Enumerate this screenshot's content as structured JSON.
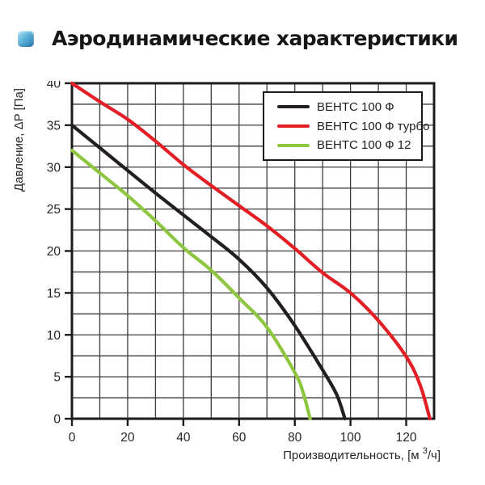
{
  "header": {
    "title": "Аэродинамические характеристики",
    "bullet_icon": "blue-glossy-square",
    "accent_color": "#2178ad"
  },
  "chart_data": {
    "type": "line",
    "title": "Аэродинамические характеристики",
    "xlabel": "Производительность, [м³/ч]",
    "ylabel": "Давление, ΔP [Па]",
    "xlim": [
      0,
      130
    ],
    "ylim": [
      0,
      40
    ],
    "x_major_ticks": [
      0,
      20,
      40,
      60,
      80,
      100,
      120
    ],
    "y_major_ticks": [
      0,
      5,
      10,
      15,
      20,
      25,
      30,
      35,
      40
    ],
    "x_grid_step": 10,
    "y_grid_step": 2.5,
    "grid": true,
    "grid_color": "#3d3d3d",
    "frame_color": "#1c1c1c",
    "legend_position": "top-right",
    "series": [
      {
        "name": "ВЕНТС 100 Ф",
        "color": "#231f20",
        "points": [
          [
            0,
            35
          ],
          [
            10,
            32.3
          ],
          [
            20,
            29.6
          ],
          [
            30,
            26.9
          ],
          [
            40,
            24.3
          ],
          [
            50,
            21.7
          ],
          [
            60,
            19
          ],
          [
            70,
            15.6
          ],
          [
            80,
            11.1
          ],
          [
            90,
            5.8
          ],
          [
            95,
            2.9
          ],
          [
            98,
            0
          ]
        ]
      },
      {
        "name": "ВЕНТС 100 Ф турбо",
        "color": "#e31e24",
        "points": [
          [
            0,
            40
          ],
          [
            10,
            37.8
          ],
          [
            20,
            35.7
          ],
          [
            30,
            33.1
          ],
          [
            40,
            30.3
          ],
          [
            50,
            27.8
          ],
          [
            60,
            25.4
          ],
          [
            70,
            23
          ],
          [
            80,
            20.3
          ],
          [
            90,
            17.4
          ],
          [
            100,
            15
          ],
          [
            110,
            11.7
          ],
          [
            120,
            7.4
          ],
          [
            125,
            4
          ],
          [
            128.5,
            0
          ]
        ]
      },
      {
        "name": "ВЕНТС 100 Ф 12",
        "color": "#8dc63f",
        "points": [
          [
            0,
            32
          ],
          [
            10,
            29.3
          ],
          [
            20,
            26.6
          ],
          [
            30,
            23.6
          ],
          [
            40,
            20.4
          ],
          [
            50,
            17.7
          ],
          [
            60,
            14.4
          ],
          [
            70,
            10.9
          ],
          [
            80,
            5.5
          ],
          [
            83,
            3.1
          ],
          [
            85.5,
            0
          ]
        ]
      }
    ]
  }
}
